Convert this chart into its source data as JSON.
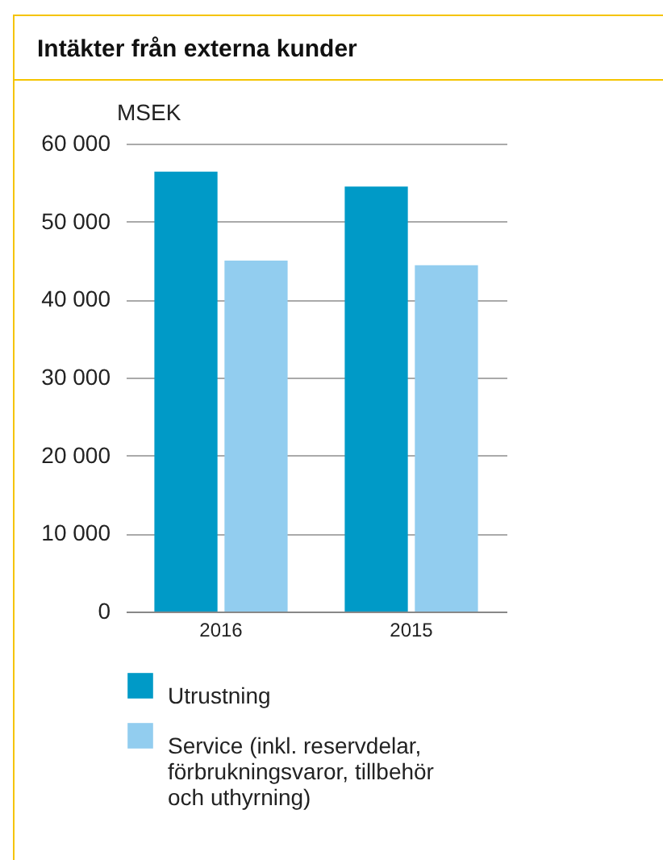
{
  "chart_data": {
    "type": "bar",
    "title": "Intäkter från externa kunder",
    "ylabel": "MSEK",
    "categories": [
      "2016",
      "2015"
    ],
    "series": [
      {
        "name": "Utrustning",
        "color": "#009ac7",
        "values": [
          56400,
          54500
        ]
      },
      {
        "name": "Service (inkl. reservdelar, förbrukningsvaror, tillbehör och uthyrning)",
        "color": "#92cdef",
        "values": [
          45000,
          44400
        ]
      }
    ],
    "ylim": [
      0,
      60000
    ],
    "yticks": [
      {
        "value": 0,
        "label": "0"
      },
      {
        "value": 10000,
        "label": "10 000"
      },
      {
        "value": 20000,
        "label": "20 000"
      },
      {
        "value": 30000,
        "label": "30 000"
      },
      {
        "value": 40000,
        "label": "40 000"
      },
      {
        "value": 50000,
        "label": "50 000"
      },
      {
        "value": 60000,
        "label": "60 000"
      }
    ],
    "grid": "y",
    "legend": "bottom"
  }
}
